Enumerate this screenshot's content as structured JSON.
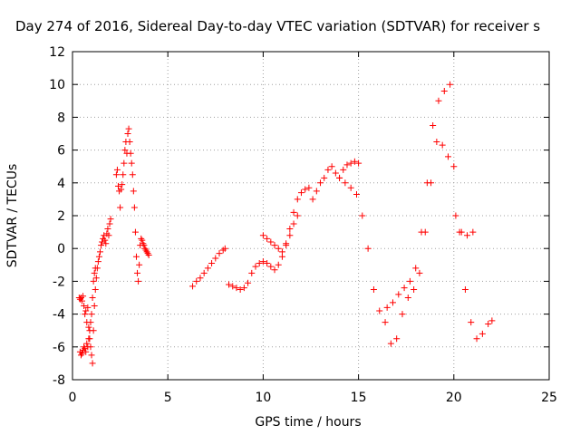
{
  "chart_data": {
    "type": "scatter",
    "title": "Day 274 of 2016, Sidereal Day-to-day VTEC variation (SDTVAR) for receiver s",
    "xlabel": "GPS time / hours",
    "ylabel": "SDTVAR / TECUs",
    "xlim": [
      0,
      25
    ],
    "ylim": [
      -8,
      12
    ],
    "xticks": [
      "0",
      "5",
      "10",
      "15",
      "20",
      "25"
    ],
    "yticks": [
      "-8",
      "-6",
      "-4",
      "-2",
      "0",
      "2",
      "4",
      "6",
      "8",
      "10",
      "12"
    ],
    "grid": true,
    "marker": "+",
    "color": "#ff0000",
    "series": [
      {
        "x": [
          0.35,
          0.4,
          0.45,
          0.5,
          0.55,
          0.6,
          0.65,
          0.7,
          0.75,
          0.8,
          0.85,
          0.9,
          0.95,
          1.0,
          1.05,
          1.1,
          1.15,
          1.2,
          1.25,
          1.3,
          1.35,
          1.4,
          1.45,
          1.5,
          1.55,
          1.6,
          1.65,
          1.7,
          1.75,
          1.8,
          1.85,
          1.9,
          1.95,
          2.0,
          0.4,
          0.45,
          0.5,
          0.55,
          0.6,
          0.65,
          0.7,
          0.75,
          0.8,
          0.85,
          0.9,
          0.95,
          1.0,
          1.05,
          1.1,
          1.15,
          1.2
        ],
        "y": [
          -3.0,
          -3.1,
          -3.0,
          -3.2,
          -2.9,
          -3.5,
          -4.0,
          -3.8,
          -4.5,
          -3.6,
          -4.8,
          -5.5,
          -6.0,
          -6.5,
          -7.0,
          -5.0,
          -3.5,
          -2.5,
          -1.8,
          -1.2,
          -0.8,
          -0.5,
          -0.2,
          0.2,
          0.4,
          0.6,
          0.8,
          0.5,
          0.3,
          0.9,
          1.2,
          0.8,
          1.5,
          1.8,
          -6.3,
          -6.5,
          -6.4,
          -6.2,
          -6.0,
          -6.1,
          -6.3,
          -5.8,
          -6.0,
          -5.5,
          -5.0,
          -4.5,
          -4.0,
          -3.0,
          -2.0,
          -1.5,
          -1.2
        ]
      },
      {
        "x": [
          2.3,
          2.35,
          2.4,
          2.45,
          2.5,
          2.55,
          2.6,
          2.65,
          2.7,
          2.75,
          2.8,
          2.85,
          2.9,
          2.95,
          3.0,
          3.05,
          3.1,
          3.15,
          3.2,
          3.25,
          3.3,
          3.35,
          3.4,
          3.45,
          3.5,
          3.55,
          3.6,
          3.65,
          3.7,
          3.75,
          3.8,
          3.85,
          3.9,
          3.95,
          4.0
        ],
        "y": [
          4.5,
          4.8,
          3.8,
          3.5,
          2.5,
          3.6,
          3.9,
          4.5,
          5.2,
          6.0,
          6.5,
          5.8,
          7.0,
          7.3,
          6.5,
          5.8,
          5.2,
          4.5,
          3.5,
          2.5,
          1.0,
          -0.5,
          -1.5,
          -2.0,
          -1.0,
          0.2,
          0.6,
          0.5,
          0.3,
          0.2,
          0.0,
          -0.1,
          -0.2,
          -0.3,
          -0.4
        ]
      },
      {
        "x": [
          6.3,
          6.5,
          6.7,
          6.9,
          7.1,
          7.3,
          7.5,
          7.7,
          7.9,
          8.0
        ],
        "y": [
          -2.3,
          -2.0,
          -1.8,
          -1.5,
          -1.2,
          -0.9,
          -0.6,
          -0.3,
          -0.1,
          0.0
        ]
      },
      {
        "x": [
          8.2,
          8.4,
          8.6,
          8.8,
          9.0,
          9.2,
          9.4,
          9.6,
          9.8,
          10.0,
          10.2,
          10.4,
          10.6,
          10.8,
          11.0,
          11.2,
          11.4,
          11.6,
          11.8,
          12.0,
          12.2,
          12.4,
          12.6,
          12.8,
          13.0,
          13.2,
          13.4,
          13.6,
          13.8,
          14.0,
          14.2,
          14.4,
          14.6,
          14.8,
          15.0
        ],
        "y": [
          -2.2,
          -2.3,
          -2.4,
          -2.5,
          -2.4,
          -2.1,
          -1.5,
          -1.1,
          -0.9,
          -0.8,
          -0.9,
          -1.1,
          -1.3,
          -1.0,
          -0.5,
          0.3,
          1.2,
          2.2,
          3.0,
          3.4,
          3.6,
          3.7,
          3.0,
          3.5,
          4.0,
          4.3,
          4.8,
          5.0,
          4.6,
          4.3,
          4.8,
          5.1,
          5.2,
          5.3,
          5.2
        ]
      },
      {
        "x": [
          10.0,
          10.2,
          10.4,
          10.6,
          10.8,
          11.0,
          11.2,
          11.4,
          11.6,
          11.8
        ],
        "y": [
          0.8,
          0.6,
          0.4,
          0.2,
          0.0,
          -0.2,
          0.2,
          0.8,
          1.5,
          2.0
        ]
      },
      {
        "x": [
          14.0,
          14.3,
          14.6,
          14.9,
          15.2,
          15.5,
          15.8,
          16.1,
          16.4,
          16.7,
          17.0,
          17.3,
          17.6,
          17.9,
          18.2,
          18.5,
          18.8,
          19.1,
          19.4,
          19.7,
          20.0,
          20.3,
          20.6,
          20.9,
          21.2,
          21.5,
          21.8,
          22.0
        ],
        "y": [
          4.3,
          4.0,
          3.7,
          3.3,
          2.0,
          0.0,
          -2.5,
          -3.8,
          -4.5,
          -5.8,
          -5.5,
          -4.0,
          -3.0,
          -2.5,
          -1.5,
          1.0,
          4.0,
          6.5,
          6.3,
          5.6,
          5.0,
          1.0,
          -2.5,
          -4.5,
          -5.5,
          -5.2,
          -4.6,
          -4.4
        ]
      },
      {
        "x": [
          16.5,
          16.8,
          17.1,
          17.4,
          17.7,
          18.0,
          18.3,
          18.6,
          18.9,
          19.2,
          19.5,
          19.8,
          20.1,
          20.4,
          20.7,
          21.0
        ],
        "y": [
          -3.6,
          -3.3,
          -2.8,
          -2.4,
          -2.0,
          -1.2,
          1.0,
          4.0,
          7.5,
          9.0,
          9.6,
          10.0,
          2.0,
          1.0,
          0.8,
          1.0
        ]
      }
    ]
  }
}
